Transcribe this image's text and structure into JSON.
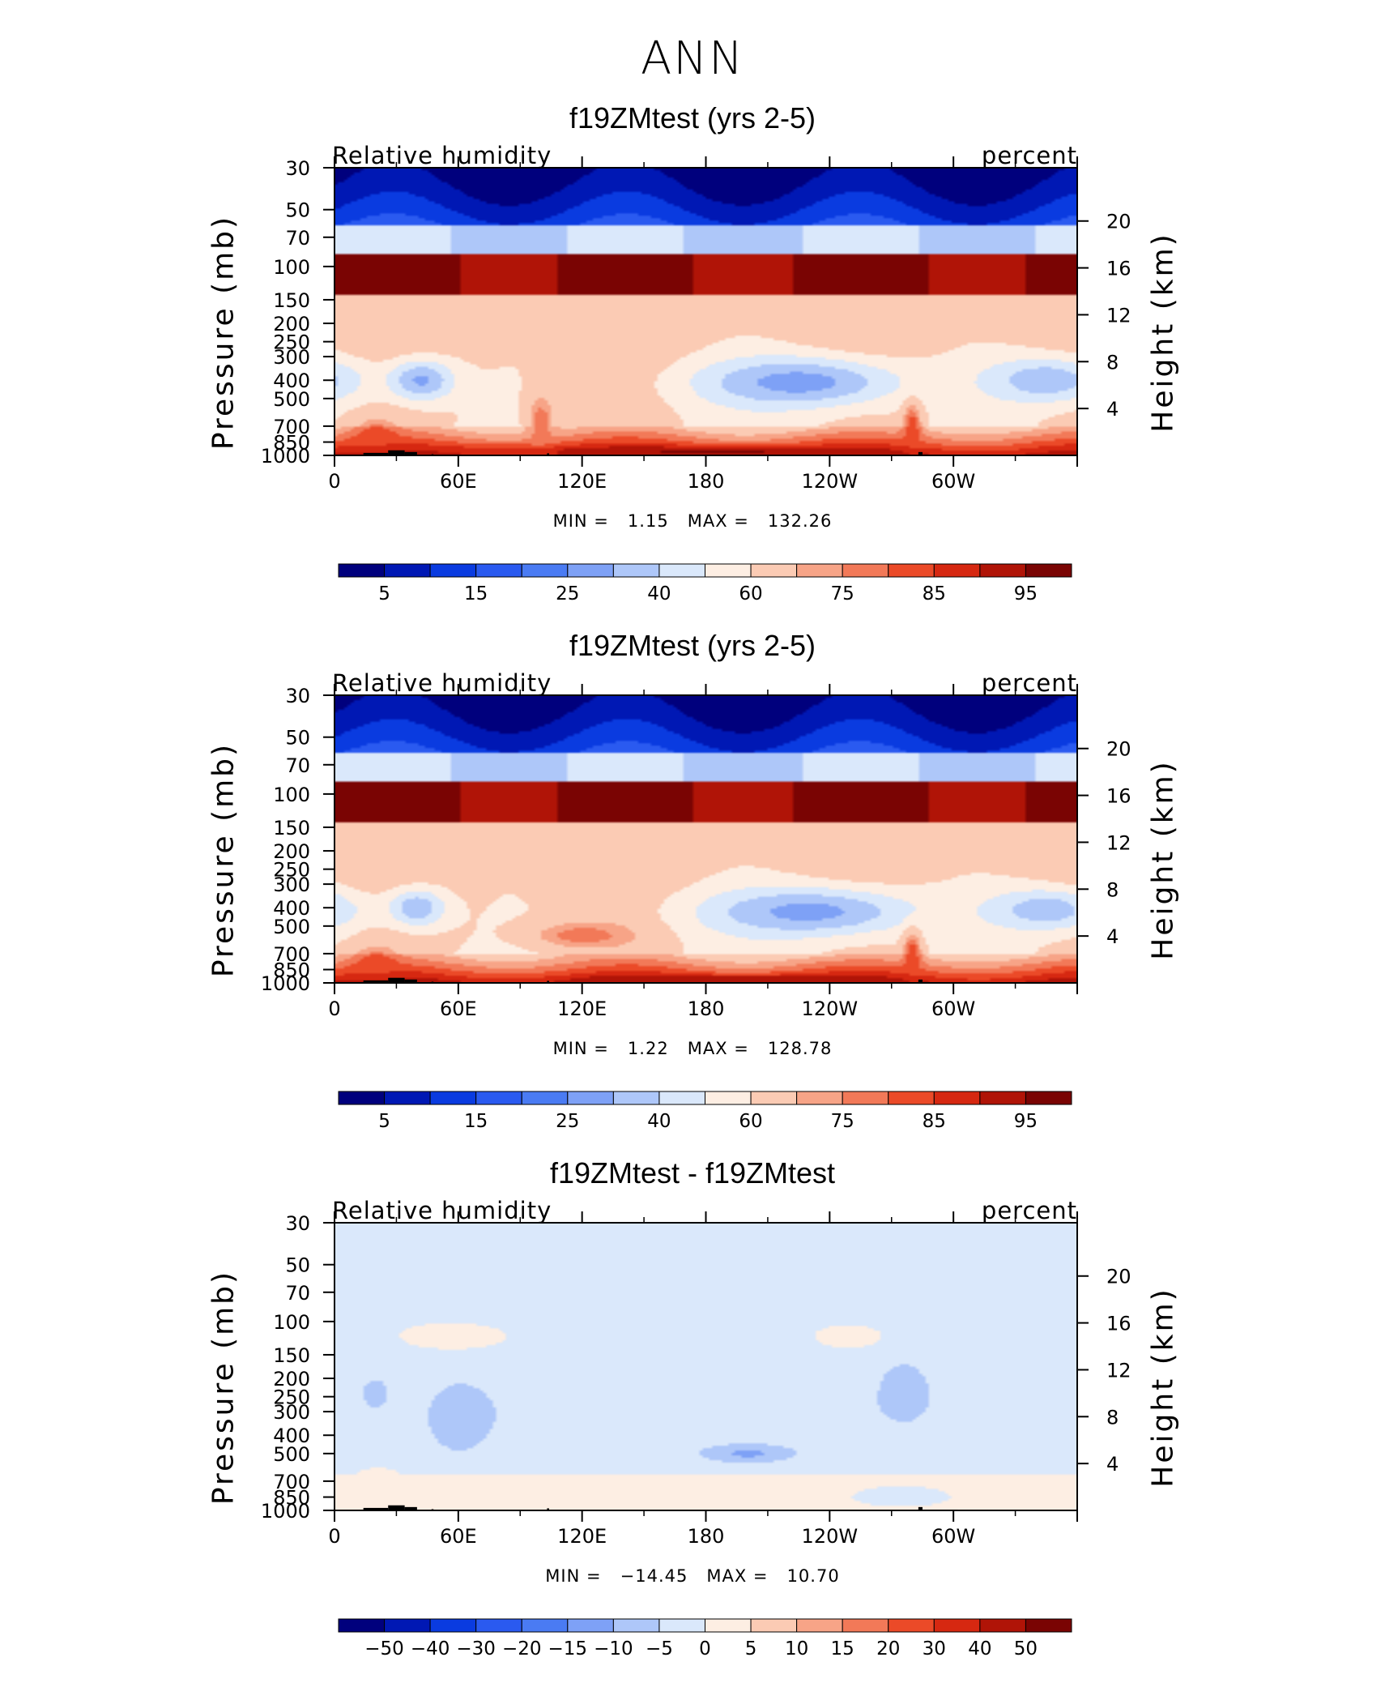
{
  "figure_title": "ANN",
  "colors": {
    "standard_levels": [
      "#00007d",
      "#0018b4",
      "#0a3be0",
      "#2a5af0",
      "#4a7bf3",
      "#7ea1f6",
      "#aec7f9",
      "#dae8fb",
      "#fdeee3",
      "#fbcbb4",
      "#f7a487",
      "#f27958",
      "#eb4a28",
      "#d62811",
      "#b01407",
      "#7a0403"
    ],
    "diff_levels": [
      "#00007d",
      "#0018b4",
      "#0a3be0",
      "#2a5af0",
      "#4a7bf3",
      "#7ea1f6",
      "#aec7f9",
      "#dae8fb",
      "#fdeee3",
      "#fbcbb4",
      "#f7a487",
      "#f27958",
      "#eb4a28",
      "#d62811",
      "#b01407",
      "#7a0403"
    ],
    "topography": "#000000"
  },
  "chart_data": [
    {
      "type": "heatmap",
      "title": "f19ZMtest (yrs 2-5)",
      "variable_label": "Relative humidity",
      "units_label": "percent",
      "ylabel": "Pressure (mb)",
      "ylabel_right": "Height (km)",
      "x_ticks": [
        "0",
        "60E",
        "120E",
        "180",
        "120W",
        "60W"
      ],
      "y_ticks": [
        "30",
        "50",
        "70",
        "100",
        "150",
        "200",
        "250",
        "300",
        "400",
        "500",
        "700",
        "850",
        "1000"
      ],
      "y_ticks_right": [
        "20",
        "16",
        "12",
        "8",
        "4"
      ],
      "min_label": "MIN =",
      "min_value": "1.15",
      "max_label": "MAX =",
      "max_value": "132.26",
      "colorbar_labels": [
        "5",
        "15",
        "25",
        "40",
        "60",
        "75",
        "85",
        "95"
      ],
      "field": "standard",
      "blobs": [
        {
          "lon": 42,
          "p": 400,
          "rx": 18,
          "ry": 130,
          "v": 28
        },
        {
          "lon": 225,
          "p": 410,
          "rx": 55,
          "ry": 170,
          "v": 25
        },
        {
          "lon": 345,
          "p": 400,
          "rx": 34,
          "ry": 150,
          "v": 32
        },
        {
          "lon": 20,
          "p": 800,
          "rx": 12,
          "ry": 200,
          "v": 84
        },
        {
          "lon": 140,
          "p": 960,
          "rx": 110,
          "ry": 80,
          "v": 90
        },
        {
          "lon": 185,
          "p": 960,
          "rx": 70,
          "ry": 60,
          "v": 96
        },
        {
          "lon": 280,
          "p": 700,
          "rx": 5,
          "ry": 260,
          "v": 84
        },
        {
          "lon": 100,
          "p": 650,
          "rx": 8,
          "ry": 300,
          "v": 78
        }
      ]
    },
    {
      "type": "heatmap",
      "title": "f19ZMtest (yrs 2-5)",
      "variable_label": "Relative humidity",
      "units_label": "percent",
      "ylabel": "Pressure (mb)",
      "ylabel_right": "Height (km)",
      "x_ticks": [
        "0",
        "60E",
        "120E",
        "180",
        "120W",
        "60W"
      ],
      "y_ticks": [
        "30",
        "50",
        "70",
        "100",
        "150",
        "200",
        "250",
        "300",
        "400",
        "500",
        "700",
        "850",
        "1000"
      ],
      "y_ticks_right": [
        "20",
        "16",
        "12",
        "8",
        "4"
      ],
      "min_label": "MIN =",
      "min_value": "1.22",
      "max_label": "MAX =",
      "max_value": "128.78",
      "colorbar_labels": [
        "5",
        "15",
        "25",
        "40",
        "60",
        "75",
        "85",
        "95"
      ],
      "field": "standard",
      "blobs": [
        {
          "lon": 40,
          "p": 400,
          "rx": 16,
          "ry": 120,
          "v": 32
        },
        {
          "lon": 230,
          "p": 420,
          "rx": 58,
          "ry": 170,
          "v": 26
        },
        {
          "lon": 345,
          "p": 410,
          "rx": 32,
          "ry": 140,
          "v": 33
        },
        {
          "lon": 20,
          "p": 800,
          "rx": 12,
          "ry": 200,
          "v": 84
        },
        {
          "lon": 120,
          "p": 560,
          "rx": 30,
          "ry": 120,
          "v": 78
        },
        {
          "lon": 190,
          "p": 960,
          "rx": 70,
          "ry": 60,
          "v": 94
        },
        {
          "lon": 280,
          "p": 700,
          "rx": 5,
          "ry": 260,
          "v": 84
        }
      ]
    },
    {
      "type": "heatmap",
      "title": "f19ZMtest - f19ZMtest",
      "variable_label": "Relative humidity",
      "units_label": "percent",
      "ylabel": "Pressure (mb)",
      "ylabel_right": "Height (km)",
      "x_ticks": [
        "0",
        "60E",
        "120E",
        "180",
        "120W",
        "60W"
      ],
      "y_ticks": [
        "30",
        "50",
        "70",
        "100",
        "150",
        "200",
        "250",
        "300",
        "400",
        "500",
        "700",
        "850",
        "1000"
      ],
      "y_ticks_right": [
        "20",
        "16",
        "12",
        "8",
        "4"
      ],
      "min_label": "MIN =",
      "min_value": "−14.45",
      "max_label": "MAX =",
      "max_value": "10.70",
      "colorbar_labels": [
        "−50",
        "−40",
        "−30",
        "−20",
        "−15",
        "−10",
        "−5",
        "0",
        "5",
        "10",
        "15",
        "20",
        "30",
        "40",
        "50"
      ],
      "field": "diff",
      "blobs": [
        {
          "lon": 60,
          "p": 330,
          "rx": 18,
          "ry": 220,
          "v": -8
        },
        {
          "lon": 200,
          "p": 500,
          "rx": 25,
          "ry": 70,
          "v": -11
        },
        {
          "lon": 276,
          "p": 230,
          "rx": 8,
          "ry": 60,
          "v": -9
        },
        {
          "lon": 20,
          "p": 240,
          "rx": 8,
          "ry": 60,
          "v": -7
        },
        {
          "lon": 140,
          "p": 790,
          "rx": 40,
          "ry": 100,
          "v": 4
        },
        {
          "lon": 20,
          "p": 720,
          "rx": 14,
          "ry": 140,
          "v": 4
        },
        {
          "lon": 60,
          "p": 120,
          "rx": 28,
          "ry": 22,
          "v": 4
        },
        {
          "lon": 250,
          "p": 120,
          "rx": 20,
          "ry": 22,
          "v": 4
        }
      ]
    }
  ]
}
